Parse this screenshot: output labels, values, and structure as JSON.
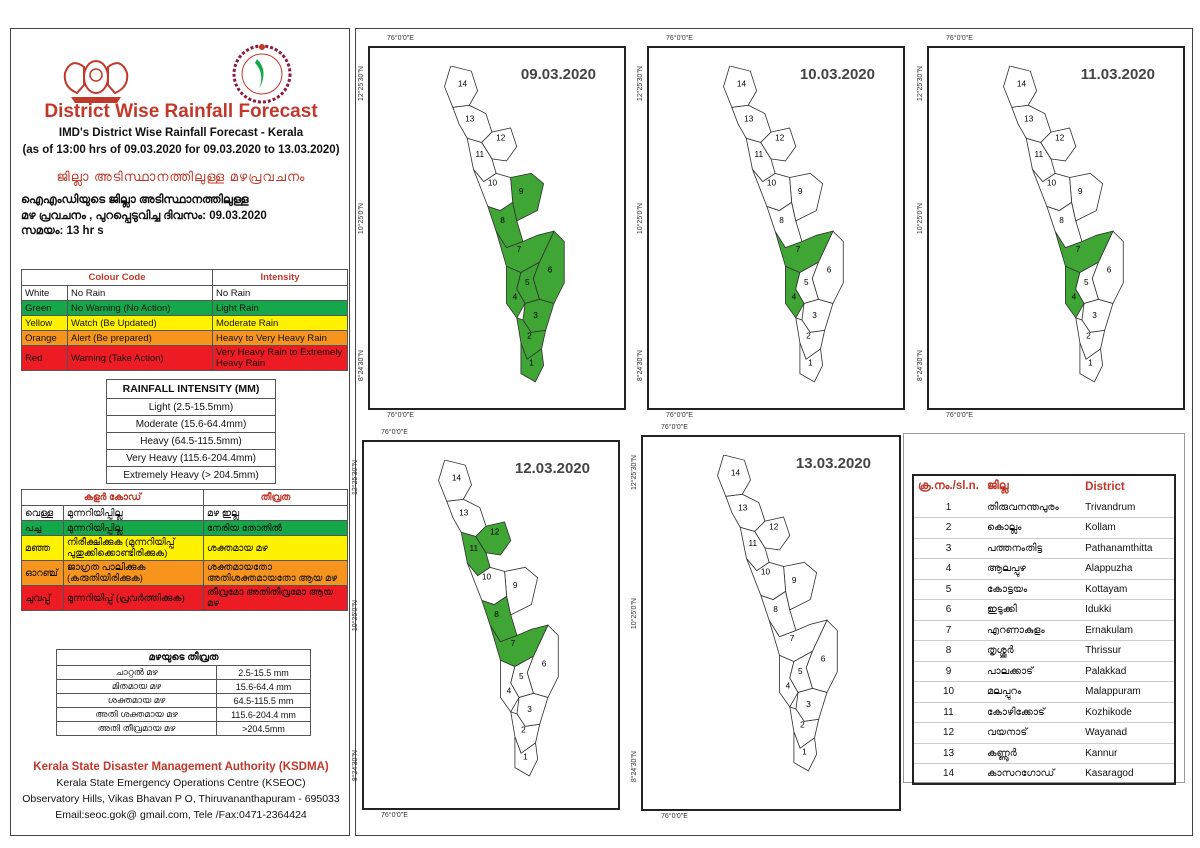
{
  "header": {
    "title": "District Wise Rainfall Forecast",
    "subtitle": "IMD's District Wise Rainfall Forecast - Kerala",
    "validity": "(as of 13:00 hrs of 09.03.2020  for 09.03.2020  to 13.03.2020)",
    "ml_title": "ജില്ലാ അടിസ്ഥാനത്തിലുള്ള  മഴപ്രവചനം",
    "ml_line1": "ഐഎംഡിയുടെ ജില്ലാ     അടിസ്ഥാനത്തിലുള്ള",
    "ml_line2": "മഴ പ്രവചനം , പുറപ്പെടുവിച്ച       ദിവസം: 09.03.2020",
    "ml_line3": "സമയം:  13  hr s"
  },
  "colour_code": {
    "h1": "Colour Code",
    "h2": "Intensity",
    "rows": [
      {
        "code": "White",
        "meaning": "No Rain",
        "intensity": "No Rain",
        "color": "#ffffff"
      },
      {
        "code": "Green",
        "meaning": "No Warning (No Action)",
        "intensity": "Light Rain",
        "color": "#14a84a"
      },
      {
        "code": "Yellow",
        "meaning": "Watch (Be Updated)",
        "intensity": "Moderate Rain",
        "color": "#fff200"
      },
      {
        "code": "Orange",
        "meaning": "Alert (Be prepared)",
        "intensity": "Heavy to Very Heavy Rain",
        "color": "#f7941d"
      },
      {
        "code": "Red",
        "meaning": "Warning (Take Action)",
        "intensity": "Very Heavy Rain to Extremely Heavy Rain",
        "color": "#ed1c24"
      }
    ]
  },
  "rainfall_intensity": {
    "title": "RAINFALL INTENSITY (MM)",
    "rows": [
      "Light (2.5-15.5mm)",
      "Moderate (15.6-64.4mm)",
      "Heavy (64.5-115.5mm)",
      "Very Heavy (115.6-204.4mm)",
      "Extremely Heavy (> 204.5mm)"
    ]
  },
  "ml_colour_code": {
    "h1": "കളർ കോഡ്",
    "h2": "തീവ്രത",
    "rows": [
      {
        "c": "വെള്ള",
        "m": "മുന്നറിയിപ്പില്ല",
        "i": "മഴ ഇല്ല"
      },
      {
        "c": "പച്ച",
        "m": "മുന്നറിയിപ്പില്ല",
        "i": "നേരിയ തോതിൽ"
      },
      {
        "c": "മഞ്ഞ",
        "m": "നിരീക്ഷിക്കുക (മുന്നറിയിപ്പ് പുതുക്കിക്കൊണ്ടിരിക്കുക)",
        "i": "ശക്തമായ മഴ"
      },
      {
        "c": "ഓറഞ്ച്",
        "m": "ജാഗ്രത പാലിക്കുക (കരുതിയിരിക്കുക)",
        "i": "ശക്തമായതോ അതിശക്തമായതോ ആയ മഴ"
      },
      {
        "c": "ചുവപ്പ്",
        "m": "മുന്നറിയിപ്പ് (പ്രവർത്തിക്കുക)",
        "i": "തീവ്രമോ അതിതീവ്രമോ ആയ മഴ"
      }
    ]
  },
  "ml_intensity": {
    "title": "മഴയുടെ തീവ്രത",
    "rows": [
      {
        "n": "ചാറ്റൽ മഴ",
        "v": "2.5-15.5 mm"
      },
      {
        "n": "മിതമായ മഴ",
        "v": "15.6-64.4 mm"
      },
      {
        "n": "ശക്തമായ മഴ",
        "v": "64.5-115.5 mm"
      },
      {
        "n": "അതി ശക്തമായ മഴ",
        "v": "115.6-204.4 mm"
      },
      {
        "n": "അതി തീവ്രമായ മഴ",
        "v": ">204.5mm"
      }
    ]
  },
  "footer": {
    "org": "Kerala State Disaster Management Authority (KSDMA)",
    "centre": "Kerala State Emergency Operations Centre (KSEOC)",
    "address": "Observatory Hills, Vikas Bhavan P O, Thiruvananthapuram - 695033",
    "contact": "Email:seoc.gok@ gmail.com, Tele /Fax:0471-2364424"
  },
  "coords": {
    "lon": "76°0'0\"E",
    "lat_n": "12°25'30\"N",
    "lat_m": "10°25'0\"N",
    "lat_s": "8°24'30\"N"
  },
  "maps": [
    {
      "date": "09.03.2020",
      "green": [
        1,
        2,
        3,
        4,
        5,
        6,
        7,
        8,
        9
      ]
    },
    {
      "date": "10.03.2020",
      "green": [
        7,
        4
      ]
    },
    {
      "date": "11.03.2020",
      "green": [
        7,
        4
      ]
    },
    {
      "date": "12.03.2020",
      "green": [
        7,
        8,
        11,
        12
      ]
    },
    {
      "date": "13.03.2020",
      "green": []
    }
  ],
  "district_legend": {
    "h_no": "ക്ര.നം./sl.n.",
    "h_ml": "ജില്ല",
    "h_en": "District",
    "rows": [
      {
        "n": "1",
        "ml": "തിരുവനന്തപുരം",
        "en": "Trivandrum"
      },
      {
        "n": "2",
        "ml": "കൊല്ലം",
        "en": "Kollam"
      },
      {
        "n": "3",
        "ml": "പത്തനംതിട്ട",
        "en": "Pathanamthitta"
      },
      {
        "n": "4",
        "ml": "ആലപ്പുഴ",
        "en": "Alappuzha"
      },
      {
        "n": "5",
        "ml": "കോട്ടയം",
        "en": "Kottayam"
      },
      {
        "n": "6",
        "ml": "ഇടുക്കി",
        "en": "Idukki"
      },
      {
        "n": "7",
        "ml": "എറണാകുളം",
        "en": "Ernakulam"
      },
      {
        "n": "8",
        "ml": "തൃശ്ശൂർ",
        "en": "Thrissur"
      },
      {
        "n": "9",
        "ml": "പാലക്കാട്",
        "en": "Palakkad"
      },
      {
        "n": "10",
        "ml": "മലപ്പുറം",
        "en": "Malappuram"
      },
      {
        "n": "11",
        "ml": "കോഴിക്കോട്",
        "en": "Kozhikode"
      },
      {
        "n": "12",
        "ml": "വയനാട്",
        "en": "Wayanad"
      },
      {
        "n": "13",
        "ml": "കണ്ണൂർ",
        "en": "Kannur"
      },
      {
        "n": "14",
        "ml": "കാസറഗോഡ്",
        "en": "Kasaragod"
      }
    ]
  }
}
